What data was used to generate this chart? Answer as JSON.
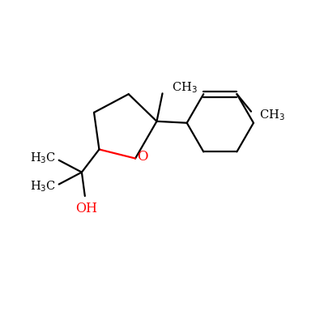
{
  "background": "#ffffff",
  "bond_color": "#000000",
  "oxygen_color": "#ff0000",
  "oh_color": "#ff0000",
  "line_width": 1.6,
  "font_size": 10.5,
  "figsize": [
    4.0,
    4.0
  ],
  "dpi": 100
}
